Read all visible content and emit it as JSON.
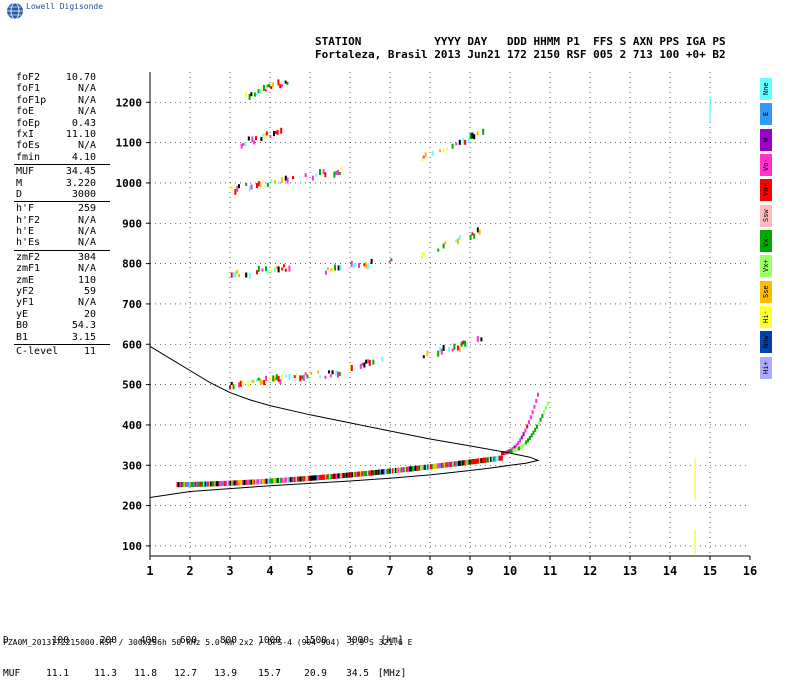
{
  "brand": "Lowell Digisonde",
  "header": {
    "line1": "STATION           YYYY DAY   DDD HHMM P1  FFS S AXN PPS IGA PS",
    "line2": "Fortaleza, Brasil 2013 Jun21 172 2150 RSF 005 2 713 100 +0+ B2"
  },
  "params": [
    {
      "label": "foF2",
      "value": "10.70"
    },
    {
      "label": "foF1",
      "value": "N/A"
    },
    {
      "label": "foF1p",
      "value": "N/A"
    },
    {
      "label": "foE",
      "value": "N/A"
    },
    {
      "label": "foEp",
      "value": "0.43"
    },
    {
      "label": "fxI",
      "value": "11.10"
    },
    {
      "label": "foEs",
      "value": "N/A"
    },
    {
      "label": "fmin",
      "value": "4.10"
    },
    {
      "label": "MUF",
      "value": "34.45",
      "sep_before": true
    },
    {
      "label": "M",
      "value": "3.220"
    },
    {
      "label": "D",
      "value": "3000"
    },
    {
      "label": "h'F",
      "value": "259",
      "sep_before": true
    },
    {
      "label": "h'F2",
      "value": "N/A"
    },
    {
      "label": "h'E",
      "value": "N/A"
    },
    {
      "label": "h'Es",
      "value": "N/A"
    },
    {
      "label": "zmF2",
      "value": "304",
      "sep_before": true
    },
    {
      "label": "zmF1",
      "value": "N/A"
    },
    {
      "label": "zmE",
      "value": "110"
    },
    {
      "label": "yF2",
      "value": "59"
    },
    {
      "label": "yF1",
      "value": "N/A"
    },
    {
      "label": "yE",
      "value": "20"
    },
    {
      "label": "B0",
      "value": "54.3"
    },
    {
      "label": "B1",
      "value": "3.15"
    },
    {
      "label": "C-level",
      "value": "11",
      "sep_before": true
    }
  ],
  "muf_table": {
    "d_label": "D",
    "muf_label": "MUF",
    "distances": [
      "100",
      "200",
      "400",
      "600",
      "800",
      "1000",
      "1500",
      "3000"
    ],
    "mufs": [
      "11.1",
      "11.3",
      "11.8",
      "12.7",
      "13.9",
      "15.7",
      "20.9",
      "34.5"
    ],
    "d_unit": "[km]",
    "muf_unit": "[MHz]"
  },
  "footer": "FZA0M_2013172215000.RSF / 300x256h 50 kHz 5.0 km 2x2 / DPS-4 (904-904)  3.9 S 321.6 E",
  "legend": [
    {
      "label": "Nne",
      "color": "#66ffff"
    },
    {
      "label": "E",
      "color": "#3399ff"
    },
    {
      "label": "W",
      "color": "#9900cc"
    },
    {
      "label": "Vo-",
      "color": "#ff33cc"
    },
    {
      "label": "Vo+",
      "color": "#ff0000"
    },
    {
      "label": "Ssw",
      "color": "#ffbbbb"
    },
    {
      "label": "Vx-",
      "color": "#00aa00"
    },
    {
      "label": "Vx+",
      "color": "#99ff66"
    },
    {
      "label": "Sse",
      "color": "#ffbb00"
    },
    {
      "label": "Hi-",
      "color": "#ffff33"
    },
    {
      "label": "Nnw",
      "color": "#0044aa"
    },
    {
      "label": "Hi+",
      "color": "#aaaaff"
    }
  ],
  "chart_data": {
    "type": "scatter",
    "xlim": [
      1,
      16
    ],
    "ylim": [
      75,
      1275
    ],
    "x_ticks": [
      1,
      2,
      3,
      4,
      5,
      6,
      7,
      8,
      9,
      10,
      11,
      12,
      13,
      14,
      15,
      16
    ],
    "y_ticks": [
      100,
      200,
      300,
      400,
      500,
      600,
      700,
      800,
      900,
      1000,
      1100,
      1200
    ],
    "grid": true,
    "traces": [
      {
        "mode": "O",
        "x0": 1.7,
        "x1": 9.8,
        "y0": 252,
        "y1": 318,
        "power": 1.6
      },
      {
        "mode": "X",
        "x0": 9.8,
        "x1": 10.7,
        "y0": 330,
        "y1": 475,
        "power": 2.2
      },
      {
        "mode": "XO",
        "x0": 10.0,
        "x1": 10.95,
        "y0": 335,
        "y1": 455,
        "power": 2.0
      },
      {
        "mode": "2F",
        "x0": 3.0,
        "x1": 5.8,
        "y0": 500,
        "y1": 530,
        "power": 1.0
      },
      {
        "mode": "2F",
        "x0": 6.0,
        "x1": 7.0,
        "y0": 545,
        "y1": 565,
        "power": 1.0
      },
      {
        "mode": "2F",
        "x0": 7.8,
        "x1": 9.4,
        "y0": 570,
        "y1": 612,
        "power": 1.0
      },
      {
        "mode": "3F",
        "x0": 3.0,
        "x1": 4.5,
        "y0": 770,
        "y1": 790,
        "power": 1.0
      },
      {
        "mode": "3F",
        "x0": 5.4,
        "x1": 5.8,
        "y0": 780,
        "y1": 790,
        "power": 1.0
      },
      {
        "mode": "3F",
        "x0": 6.0,
        "x1": 7.2,
        "y0": 795,
        "y1": 805,
        "power": 1.0
      },
      {
        "mode": "3F",
        "x0": 7.8,
        "x1": 9.3,
        "y0": 825,
        "y1": 880,
        "power": 1.0
      },
      {
        "mode": "4F",
        "x0": 3.0,
        "x1": 4.6,
        "y0": 980,
        "y1": 1015,
        "power": 1.0
      },
      {
        "mode": "4F",
        "x0": 4.8,
        "x1": 5.8,
        "y0": 1012,
        "y1": 1030,
        "power": 1.0
      },
      {
        "mode": "4F",
        "x0": 7.8,
        "x1": 9.4,
        "y0": 1065,
        "y1": 1125,
        "power": 1.0
      },
      {
        "mode": "5F",
        "x0": 3.2,
        "x1": 4.5,
        "y0": 1095,
        "y1": 1135,
        "power": 1.0
      },
      {
        "mode": "6F",
        "x0": 3.4,
        "x1": 4.5,
        "y0": 1215,
        "y1": 1255,
        "power": 1.0
      }
    ],
    "profile": {
      "x": [
        1.0,
        2.0,
        3.0,
        4.0,
        5.0,
        6.0,
        7.0,
        8.0,
        9.0,
        9.5,
        10.0,
        10.4,
        10.7,
        10.5,
        10.0,
        9.0,
        8.0,
        7.0,
        6.0,
        5.0,
        4.0,
        3.5,
        3.0,
        2.5,
        2.0,
        1.5,
        1.0
      ],
      "y": [
        220,
        235,
        242,
        249,
        255,
        261,
        268,
        276,
        287,
        293,
        300,
        305,
        312,
        320,
        330,
        348,
        365,
        385,
        405,
        425,
        448,
        462,
        480,
        505,
        535,
        565,
        595
      ]
    },
    "vertical_traces": [
      {
        "x": 14.63,
        "y0": 215,
        "y1": 320,
        "color": "#ffff33"
      },
      {
        "x": 14.63,
        "y0": 80,
        "y1": 140,
        "color": "#ffff33"
      },
      {
        "x": 15.0,
        "y0": 1150,
        "y1": 1215,
        "color": "#66ffff"
      }
    ]
  }
}
